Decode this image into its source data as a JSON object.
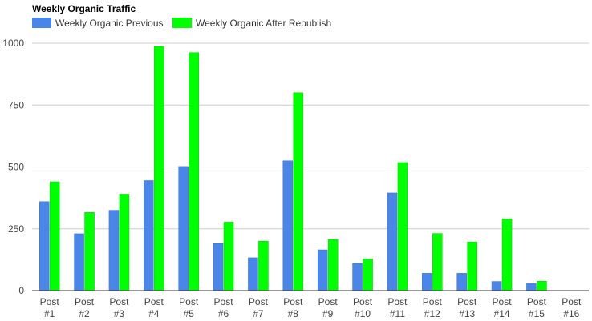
{
  "chart_data": {
    "type": "bar",
    "title": "Weekly Organic Traffic",
    "xlabel": "",
    "ylabel": "",
    "ylim": [
      0,
      1000
    ],
    "yticks": [
      0,
      250,
      500,
      750,
      1000
    ],
    "grid": true,
    "legend_position": "top-left",
    "categories": [
      [
        "Post",
        "#1"
      ],
      [
        "Post",
        "#2"
      ],
      [
        "Post",
        "#3"
      ],
      [
        "Post",
        "#4"
      ],
      [
        "Post",
        "#5"
      ],
      [
        "Post",
        "#6"
      ],
      [
        "Post",
        "#7"
      ],
      [
        "Post",
        "#8"
      ],
      [
        "Post",
        "#9"
      ],
      [
        "Post",
        "#10"
      ],
      [
        "Post",
        "#11"
      ],
      [
        "Post",
        "#12"
      ],
      [
        "Post",
        "#13"
      ],
      [
        "Post",
        "#14"
      ],
      [
        "Post",
        "#15"
      ],
      [
        "Post",
        "#16"
      ]
    ],
    "series": [
      {
        "name": "Weekly Organic Previous",
        "color": "#4a86e8",
        "values": [
          360,
          230,
          325,
          445,
          502,
          190,
          133,
          525,
          165,
          110,
          395,
          70,
          70,
          37,
          28,
          0
        ]
      },
      {
        "name": "Weekly Organic After Republish",
        "color": "#00ff00",
        "values": [
          440,
          316,
          390,
          987,
          962,
          277,
          200,
          800,
          207,
          128,
          518,
          231,
          197,
          290,
          38,
          0
        ]
      }
    ]
  }
}
